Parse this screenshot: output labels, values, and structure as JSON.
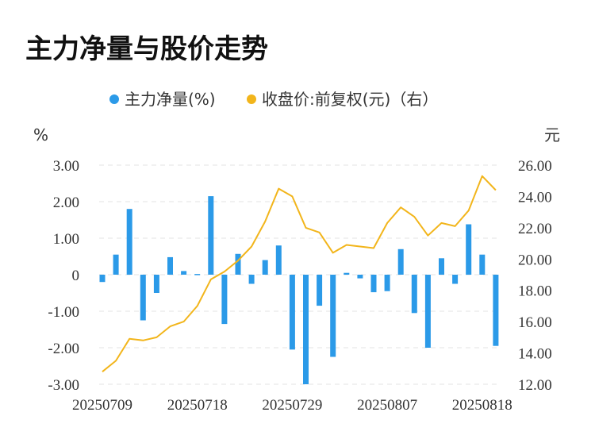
{
  "chart_data": {
    "type": "bar+line",
    "title": "主力净量与股价走势",
    "legend": {
      "placement": "top-center",
      "items": [
        {
          "label": "主力净量(%)",
          "color": "#2b9ae8"
        },
        {
          "label": "收盘价:前复权(元)（右）",
          "color": "#f2b51b"
        }
      ]
    },
    "left_axis": {
      "unit": "%",
      "ylim": [
        -3,
        3
      ],
      "ticks": [
        "3.00",
        "2.00",
        "1.00",
        "0",
        "-1.00",
        "-2.00",
        "-3.00"
      ]
    },
    "right_axis": {
      "unit": "元",
      "ylim": [
        12,
        26
      ],
      "ticks": [
        "26.00",
        "24.00",
        "22.00",
        "20.00",
        "18.00",
        "16.00",
        "14.00",
        "12.00"
      ]
    },
    "x_tick_labels": [
      "20250709",
      "20250718",
      "20250729",
      "20250807",
      "20250818"
    ],
    "x_tick_indices": [
      0,
      7,
      14,
      21,
      28
    ],
    "grid": "horizontal dashed",
    "series": [
      {
        "name": "主力净量(%)",
        "type": "bar",
        "color": "#2b9ae8",
        "values": [
          -0.2,
          0.55,
          1.8,
          -1.25,
          -0.5,
          0.48,
          0.1,
          0.02,
          2.15,
          -1.35,
          0.57,
          -0.25,
          0.4,
          0.8,
          -2.05,
          -3.0,
          -0.85,
          -2.25,
          0.05,
          -0.1,
          -0.48,
          -0.45,
          0.7,
          -1.05,
          -2.0,
          0.45,
          -0.25,
          1.38,
          0.55,
          -1.95
        ]
      },
      {
        "name": "收盘价:前复权(元)（右）",
        "type": "line",
        "color": "#f2b51b",
        "values": [
          12.8,
          13.5,
          14.9,
          14.8,
          15.0,
          15.7,
          16.0,
          17.0,
          18.7,
          19.2,
          19.9,
          20.8,
          22.4,
          24.5,
          24.0,
          22.0,
          21.7,
          20.4,
          20.9,
          20.8,
          20.7,
          22.3,
          23.3,
          22.7,
          21.5,
          22.3,
          22.1,
          23.1,
          25.3,
          24.4
        ]
      }
    ]
  }
}
